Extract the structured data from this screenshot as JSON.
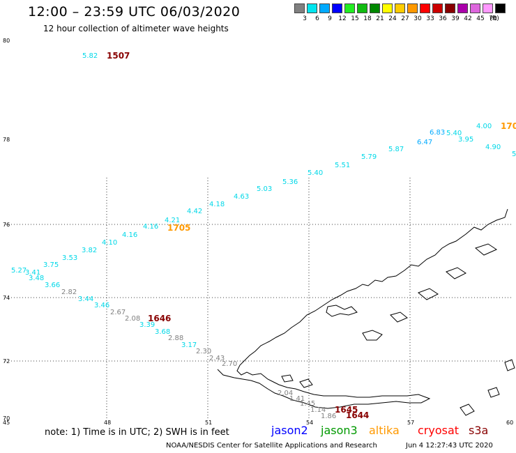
{
  "header": {
    "title": "12:00 – 23:59 UTC 06/03/2020",
    "subtitle": "12 hour collection of altimeter wave heights"
  },
  "legend": {
    "unit": "(ft)",
    "bins": [
      {
        "label": "3",
        "color": "#808080"
      },
      {
        "label": "6",
        "color": "#00e5ee"
      },
      {
        "label": "9",
        "color": "#00aaff"
      },
      {
        "label": "12",
        "color": "#0000ff"
      },
      {
        "label": "15",
        "color": "#22ee22"
      },
      {
        "label": "18",
        "color": "#11bb11"
      },
      {
        "label": "21",
        "color": "#008800"
      },
      {
        "label": "24",
        "color": "#ffff00"
      },
      {
        "label": "27",
        "color": "#ffcc00"
      },
      {
        "label": "30",
        "color": "#ff9900"
      },
      {
        "label": "33",
        "color": "#ff0000"
      },
      {
        "label": "36",
        "color": "#cc0000"
      },
      {
        "label": "39",
        "color": "#880000"
      },
      {
        "label": "42",
        "color": "#aa00aa"
      },
      {
        "label": "45",
        "color": "#dd66dd"
      },
      {
        "label": "70",
        "color": "#ff99ff"
      },
      {
        "label": "",
        "color": "#000000"
      }
    ]
  },
  "axes": {
    "lat_labels": [
      "80",
      "78",
      "76",
      "74",
      "72",
      "70"
    ],
    "lon_labels": [
      "45",
      "48",
      "51",
      "54",
      "57",
      "60"
    ]
  },
  "readings": [
    {
      "v": "5.82",
      "c": "#00d8e8"
    },
    {
      "v": "4.00",
      "c": "#00d8e8"
    },
    {
      "v": "6.83",
      "c": "#00aaff"
    },
    {
      "v": "5.40",
      "c": "#00d8e8"
    },
    {
      "v": "6.47",
      "c": "#00aaff"
    },
    {
      "v": "3.95",
      "c": "#00d8e8"
    },
    {
      "v": "4.90",
      "c": "#00d8e8"
    },
    {
      "v": "5",
      "c": "#00d8e8"
    },
    {
      "v": "5.87",
      "c": "#00d8e8"
    },
    {
      "v": "5.79",
      "c": "#00d8e8"
    },
    {
      "v": "5.51",
      "c": "#00d8e8"
    },
    {
      "v": "5.40",
      "c": "#00d8e8"
    },
    {
      "v": "5.36",
      "c": "#00d8e8"
    },
    {
      "v": "5.03",
      "c": "#00d8e8"
    },
    {
      "v": "4.63",
      "c": "#00d8e8"
    },
    {
      "v": "4.18",
      "c": "#00d8e8"
    },
    {
      "v": "4.42",
      "c": "#00d8e8"
    },
    {
      "v": "4.21",
      "c": "#00d8e8"
    },
    {
      "v": "4.16",
      "c": "#00d8e8"
    },
    {
      "v": "4.16",
      "c": "#00d8e8"
    },
    {
      "v": "4.10",
      "c": "#00d8e8"
    },
    {
      "v": "3.82",
      "c": "#00d8e8"
    },
    {
      "v": "3.53",
      "c": "#00d8e8"
    },
    {
      "v": "3.75",
      "c": "#00d8e8"
    },
    {
      "v": "5.27",
      "c": "#00d8e8"
    },
    {
      "v": "3.41",
      "c": "#00d8e8"
    },
    {
      "v": "3.48",
      "c": "#00d8e8"
    },
    {
      "v": "3.66",
      "c": "#00d8e8"
    },
    {
      "v": "2.82",
      "c": "#808080"
    },
    {
      "v": "3.44",
      "c": "#00d8e8"
    },
    {
      "v": "3.46",
      "c": "#00d8e8"
    },
    {
      "v": "2.67",
      "c": "#808080"
    },
    {
      "v": "2.08",
      "c": "#808080"
    },
    {
      "v": "3.39",
      "c": "#00d8e8"
    },
    {
      "v": "3.68",
      "c": "#00d8e8"
    },
    {
      "v": "2.88",
      "c": "#808080"
    },
    {
      "v": "3.17",
      "c": "#00d8e8"
    },
    {
      "v": "2.30",
      "c": "#808080"
    },
    {
      "v": "2.43",
      "c": "#808080"
    },
    {
      "v": "2.70",
      "c": "#808080"
    },
    {
      "v": "2.04",
      "c": "#808080"
    },
    {
      "v": "1.41",
      "c": "#808080"
    },
    {
      "v": "1.45",
      "c": "#808080"
    },
    {
      "v": "1.14",
      "c": "#808080"
    },
    {
      "v": "1.86",
      "c": "#808080"
    }
  ],
  "pass_times": [
    {
      "t": "1507",
      "c": "#880000"
    },
    {
      "t": "170",
      "c": "#ff9900"
    },
    {
      "t": "1705",
      "c": "#ff9900"
    },
    {
      "t": "1646",
      "c": "#880000"
    },
    {
      "t": "1645",
      "c": "#880000"
    },
    {
      "t": "1644",
      "c": "#880000"
    }
  ],
  "footer": {
    "note": "note:  1) Time is in UTC;  2) SWH is in feet",
    "satellites": [
      {
        "name": "jason2",
        "color": "#0000ff"
      },
      {
        "name": "jason3",
        "color": "#009900"
      },
      {
        "name": "altika",
        "color": "#ff9900"
      },
      {
        "name": "cryosat",
        "color": "#ff0000"
      },
      {
        "name": "s3a",
        "color": "#880000"
      }
    ],
    "credit": "NOAA/NESDIS Center for Satellite Applications and Research",
    "timestamp": "Jun  4 12:27:43 UTC 2020"
  }
}
